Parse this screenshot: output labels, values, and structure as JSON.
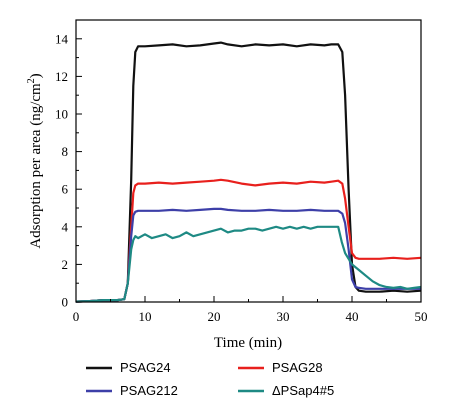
{
  "chart_data": {
    "type": "line",
    "xlabel": "Time (min)",
    "ylabel_main": "Adsorption per area (ng/cm",
    "ylabel_sup": "2",
    "ylabel_tail": ")",
    "xlim": [
      0,
      50
    ],
    "ylim": [
      0,
      15
    ],
    "xticks": [
      0,
      10,
      20,
      30,
      40,
      50
    ],
    "yticks": [
      0,
      2,
      4,
      6,
      8,
      10,
      12,
      14
    ],
    "grid": false,
    "legend_position": "bottom",
    "series": [
      {
        "name": "PSAG24",
        "color": "#111111",
        "x": [
          0,
          2,
          4,
          6,
          7,
          7.5,
          8,
          8.3,
          8.6,
          9,
          10,
          12,
          14,
          16,
          18,
          20,
          21,
          22,
          24,
          26,
          28,
          30,
          32,
          34,
          36,
          37,
          38,
          38.6,
          39,
          39.5,
          40,
          40.5,
          41,
          42,
          44,
          46,
          48,
          50
        ],
        "y": [
          0.02,
          0.05,
          0.1,
          0.1,
          0.15,
          1.0,
          6.5,
          11.5,
          13.3,
          13.6,
          13.6,
          13.65,
          13.7,
          13.6,
          13.65,
          13.75,
          13.8,
          13.7,
          13.6,
          13.7,
          13.65,
          13.7,
          13.6,
          13.7,
          13.65,
          13.7,
          13.7,
          13.3,
          11.0,
          6.0,
          2.0,
          0.8,
          0.6,
          0.55,
          0.55,
          0.6,
          0.55,
          0.6
        ]
      },
      {
        "name": "PSAG28",
        "color": "#e8201d",
        "x": [
          0,
          2,
          4,
          6,
          7,
          7.5,
          8,
          8.3,
          8.6,
          9,
          10,
          12,
          14,
          16,
          18,
          20,
          21,
          22,
          24,
          26,
          28,
          30,
          32,
          34,
          36,
          37,
          38,
          38.6,
          39,
          39.5,
          40,
          40.5,
          41,
          42,
          44,
          46,
          48,
          50
        ],
        "y": [
          0.02,
          0.05,
          0.1,
          0.1,
          0.15,
          1.0,
          4.0,
          5.8,
          6.2,
          6.3,
          6.3,
          6.35,
          6.3,
          6.35,
          6.4,
          6.45,
          6.5,
          6.45,
          6.3,
          6.2,
          6.3,
          6.35,
          6.3,
          6.4,
          6.35,
          6.4,
          6.45,
          6.3,
          5.5,
          4.0,
          2.6,
          2.35,
          2.3,
          2.3,
          2.3,
          2.35,
          2.3,
          2.35
        ]
      },
      {
        "name": "PSAG212",
        "color": "#3d3fa8",
        "x": [
          0,
          2,
          4,
          6,
          7,
          7.5,
          8,
          8.3,
          8.6,
          9,
          10,
          12,
          14,
          16,
          18,
          20,
          21,
          22,
          24,
          26,
          28,
          30,
          32,
          34,
          36,
          37,
          38,
          38.6,
          39,
          39.5,
          40,
          40.5,
          41,
          42,
          44,
          46,
          48,
          50
        ],
        "y": [
          0.02,
          0.05,
          0.1,
          0.1,
          0.15,
          1.0,
          3.5,
          4.6,
          4.8,
          4.85,
          4.85,
          4.85,
          4.9,
          4.85,
          4.9,
          4.95,
          4.95,
          4.9,
          4.85,
          4.85,
          4.9,
          4.85,
          4.85,
          4.9,
          4.85,
          4.85,
          4.85,
          4.7,
          4.2,
          2.8,
          1.2,
          0.8,
          0.75,
          0.7,
          0.7,
          0.7,
          0.7,
          0.7
        ]
      },
      {
        "name": "ΔPSap4#5",
        "color": "#1e8a84",
        "x": [
          0,
          2,
          4,
          6,
          7,
          7.5,
          8,
          8.3,
          8.6,
          9,
          10,
          11,
          12,
          13,
          14,
          15,
          16,
          17,
          18,
          19,
          20,
          21,
          22,
          23,
          24,
          25,
          26,
          27,
          28,
          29,
          30,
          31,
          32,
          33,
          34,
          35,
          36,
          37,
          38,
          38.5,
          39,
          39.5,
          40,
          41,
          42,
          43,
          44,
          45,
          46,
          47,
          48,
          49,
          50
        ],
        "y": [
          0.02,
          0.05,
          0.1,
          0.1,
          0.15,
          1.0,
          2.8,
          3.3,
          3.5,
          3.4,
          3.6,
          3.4,
          3.5,
          3.6,
          3.4,
          3.5,
          3.7,
          3.5,
          3.6,
          3.7,
          3.8,
          3.9,
          3.7,
          3.8,
          3.8,
          3.9,
          3.9,
          3.8,
          3.9,
          4.0,
          3.9,
          4.0,
          3.9,
          4.0,
          3.9,
          4.0,
          4.0,
          4.0,
          4.0,
          3.2,
          2.6,
          2.3,
          2.0,
          1.7,
          1.4,
          1.1,
          0.9,
          0.8,
          0.75,
          0.8,
          0.7,
          0.75,
          0.8
        ]
      }
    ]
  }
}
